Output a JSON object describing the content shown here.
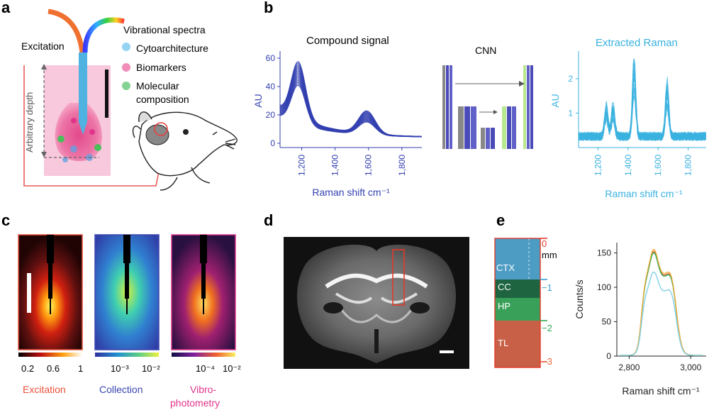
{
  "panels": {
    "a": {
      "letter": "a",
      "excitation": "Excitation",
      "vibrational": "Vibrational spectra",
      "cytoarchitecture": "Cytoarchitecture",
      "biomarkers": "Biomarkers",
      "molecular_line1": "Molecular",
      "molecular_line2": "composition",
      "arbitrary_depth": "Arbitrary depth",
      "colors": {
        "excitation": "#e8503a",
        "vibrational": "#3cbf3c",
        "cyto": "#3aa0d8",
        "bio": "#e0358a",
        "mol": "#2fa84f"
      }
    },
    "b": {
      "letter": "b",
      "compound_title": "Compound signal",
      "cnn_title": "CNN",
      "extracted_title": "Extracted Raman",
      "colors": {
        "compound": "#3340b0",
        "extracted": "#3ab2e0"
      }
    },
    "c": {
      "letter": "c",
      "maps": [
        {
          "label": "Excitation",
          "ticks": [
            "0.2",
            "0.6",
            "1"
          ],
          "color": "#e8503a"
        },
        {
          "label": "Collection",
          "ticks": [
            "10⁻³",
            "10⁻²"
          ],
          "color": "#3a45b0"
        },
        {
          "label_line1": "Vibro-",
          "label_line2": "photometry",
          "ticks": [
            "10⁻⁴",
            "10⁻²"
          ],
          "color": "#e0358a"
        }
      ]
    },
    "d": {
      "letter": "d"
    },
    "e": {
      "letter": "e",
      "regions": [
        "CTX",
        "CC",
        "HP",
        "TL"
      ],
      "depth_unit": "mm",
      "depth_ticks": [
        "0",
        "−1",
        "−2",
        "−3"
      ],
      "tick_colors": [
        "#e03a2a",
        "#3aa0d8",
        "#2fa84f",
        "#e8643a"
      ]
    }
  },
  "chart_data": [
    {
      "type": "line",
      "title": "Compound signal",
      "xlabel": "Raman shift cm⁻¹",
      "ylabel": "AU",
      "xlim": [
        1070,
        1920
      ],
      "ylim": [
        -3,
        65
      ],
      "xticks": [
        "1,200",
        "1,400",
        "1,600",
        "1,800"
      ],
      "yticks": [
        "0",
        "20",
        "40",
        "60"
      ],
      "peaks": [
        {
          "x": 1180,
          "y_min": 42,
          "y_max": 61
        },
        {
          "x": 1590,
          "y_min": 13,
          "y_max": 20
        }
      ],
      "baseline_end": 4
    },
    {
      "type": "line",
      "title": "Extracted Raman",
      "xlabel": "Raman shift cm⁻¹",
      "ylabel": "AU",
      "xlim": [
        1070,
        1920
      ],
      "ylim": [
        0,
        2.8
      ],
      "xticks": [
        "1,200",
        "1,400",
        "1,600",
        "1,800"
      ],
      "yticks": [
        "1",
        "2"
      ],
      "peaks": [
        {
          "x": 1440,
          "y": 2.4
        },
        {
          "x": 1660,
          "y": 1.7
        },
        {
          "x": 1300,
          "y": 1.0
        },
        {
          "x": 1255,
          "y": 1.0
        },
        {
          "x": 1003,
          "y": 0.9
        }
      ]
    },
    {
      "type": "line",
      "xlabel": "Raman shift cm⁻¹",
      "ylabel": "Counts/s",
      "xlim": [
        2760,
        3050
      ],
      "ylim": [
        0,
        165
      ],
      "xticks": [
        "2,800",
        "3,000"
      ],
      "yticks": [
        "0",
        "50",
        "100",
        "150"
      ],
      "series": [
        {
          "color": "#e8643a",
          "peak_1": 152,
          "peak_2": 145
        },
        {
          "color": "#2fa84f",
          "peak_1": 150,
          "peak_2": 143
        },
        {
          "color": "#f0b040",
          "peak_1": 155,
          "peak_2": 148
        },
        {
          "color": "#7fd0e8",
          "peak_1": 122,
          "peak_2": 120
        }
      ]
    }
  ]
}
